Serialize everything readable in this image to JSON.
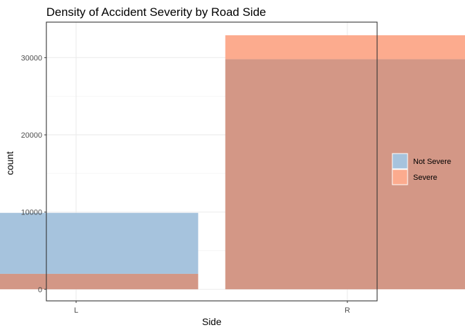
{
  "chart_data": {
    "type": "bar",
    "title": "Density of Accident Severity by Road Side",
    "xlabel": "Side",
    "ylabel": "count",
    "categories": [
      "L",
      "R"
    ],
    "series": [
      {
        "name": "Not Severe",
        "values": [
          9900,
          29800
        ],
        "color": "#a6c3dd"
      },
      {
        "name": "Severe",
        "values": [
          2000,
          32900
        ],
        "color": "#fcab8e"
      }
    ],
    "overlap_color": "#d39786",
    "ylim": [
      -1500,
      34600
    ],
    "yticks": [
      0,
      10000,
      20000,
      30000
    ],
    "ytick_labels": [
      "0",
      "10000",
      "20000",
      "30000"
    ],
    "grid": true,
    "legend_position": "right",
    "bar_mode": "overlaid"
  }
}
